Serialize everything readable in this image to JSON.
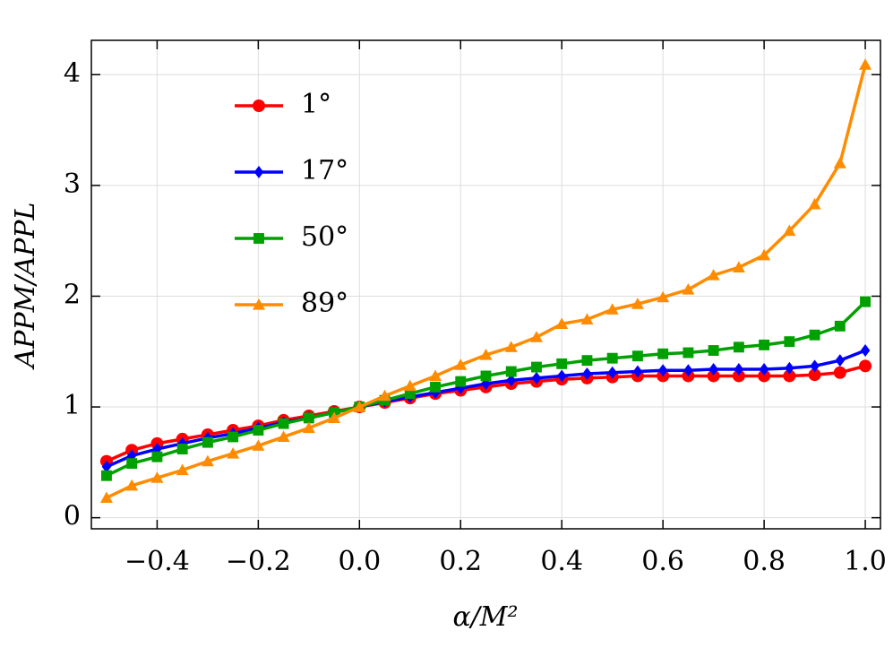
{
  "chart_data": {
    "type": "line",
    "xlabel": "α/M²",
    "ylabel": "APPM/APPL",
    "x": [
      -0.5,
      -0.45,
      -0.4,
      -0.35,
      -0.3,
      -0.25,
      -0.2,
      -0.15,
      -0.1,
      -0.05,
      0,
      0.05,
      0.1,
      0.15,
      0.2,
      0.25,
      0.3,
      0.35,
      0.4,
      0.45,
      0.5,
      0.55,
      0.6,
      0.65,
      0.7,
      0.75,
      0.8,
      0.85,
      0.9,
      0.95,
      1.0
    ],
    "series": [
      {
        "name": "1°",
        "color": "#ff0000",
        "marker": "circle",
        "values": [
          0.51,
          0.61,
          0.67,
          0.71,
          0.75,
          0.79,
          0.83,
          0.88,
          0.92,
          0.96,
          1.0,
          1.04,
          1.08,
          1.12,
          1.15,
          1.18,
          1.21,
          1.23,
          1.25,
          1.26,
          1.27,
          1.28,
          1.28,
          1.28,
          1.28,
          1.28,
          1.28,
          1.28,
          1.29,
          1.31,
          1.37
        ]
      },
      {
        "name": "17°",
        "color": "#0000ff",
        "marker": "diamond",
        "values": [
          0.46,
          0.56,
          0.62,
          0.67,
          0.72,
          0.76,
          0.81,
          0.86,
          0.9,
          0.95,
          1.0,
          1.05,
          1.09,
          1.13,
          1.17,
          1.21,
          1.24,
          1.26,
          1.28,
          1.3,
          1.31,
          1.32,
          1.33,
          1.33,
          1.34,
          1.34,
          1.34,
          1.35,
          1.37,
          1.42,
          1.51
        ]
      },
      {
        "name": "50°",
        "color": "#00a000",
        "marker": "square",
        "values": [
          0.38,
          0.49,
          0.55,
          0.62,
          0.68,
          0.73,
          0.79,
          0.85,
          0.9,
          0.95,
          1.0,
          1.06,
          1.12,
          1.18,
          1.23,
          1.28,
          1.32,
          1.36,
          1.39,
          1.42,
          1.44,
          1.46,
          1.48,
          1.49,
          1.51,
          1.54,
          1.56,
          1.59,
          1.65,
          1.73,
          1.95
        ]
      },
      {
        "name": "89°",
        "color": "#ff8c00",
        "marker": "triangle",
        "values": [
          0.18,
          0.29,
          0.36,
          0.43,
          0.51,
          0.58,
          0.65,
          0.73,
          0.81,
          0.9,
          1.0,
          1.1,
          1.19,
          1.28,
          1.38,
          1.47,
          1.54,
          1.63,
          1.75,
          1.79,
          1.88,
          1.93,
          1.99,
          2.06,
          2.19,
          2.26,
          2.37,
          2.59,
          2.83,
          3.2,
          4.09
        ]
      }
    ],
    "xlim": [
      -0.53,
      1.03
    ],
    "ylim": [
      -0.1,
      4.31
    ],
    "xticks": [
      {
        "value": -0.4,
        "label": "−0.4"
      },
      {
        "value": -0.2,
        "label": "−0.2"
      },
      {
        "value": 0,
        "label": "0.0"
      },
      {
        "value": 0.2,
        "label": "0.2"
      },
      {
        "value": 0.4,
        "label": "0.4"
      },
      {
        "value": 0.6,
        "label": "0.6"
      },
      {
        "value": 0.8,
        "label": "0.8"
      },
      {
        "value": 1.0,
        "label": "1.0"
      }
    ],
    "yticks": [
      0,
      1,
      2,
      3,
      4
    ],
    "grid": true,
    "legend": "upper-left"
  }
}
